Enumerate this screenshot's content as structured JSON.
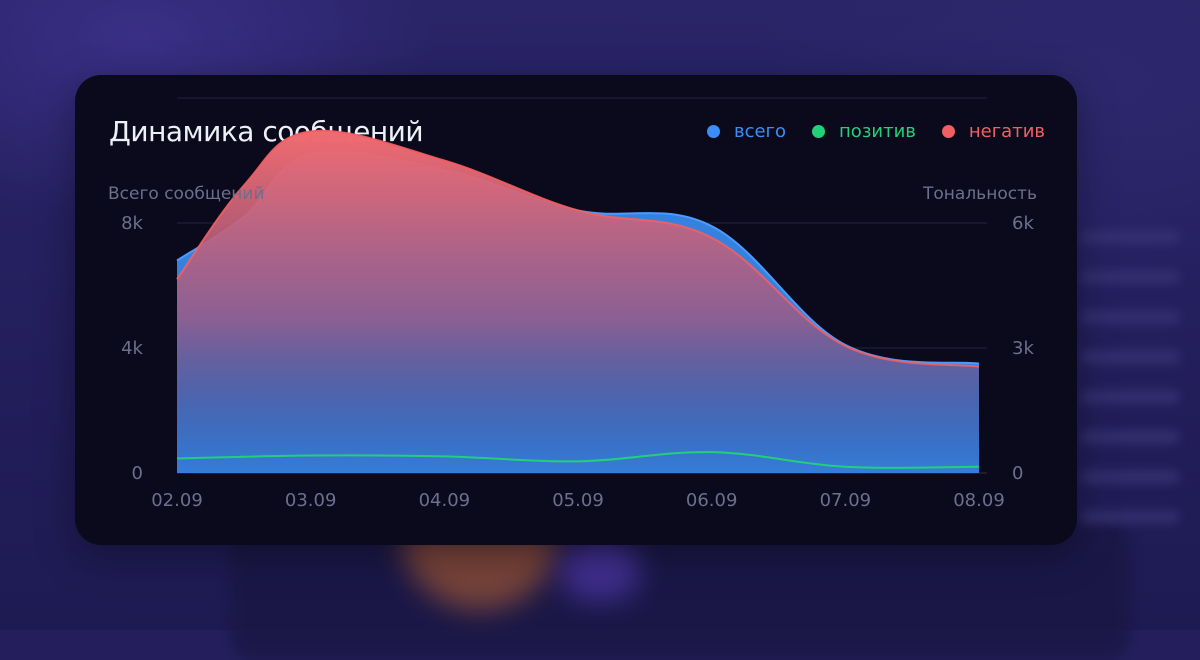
{
  "card": {
    "title": "Динамика сообщений"
  },
  "legend": [
    {
      "label": "всего",
      "color": "#3a8ef6"
    },
    {
      "label": "позитив",
      "color": "#22d07a"
    },
    {
      "label": "негатив",
      "color": "#f25f63"
    }
  ],
  "chart_data": {
    "type": "area",
    "categories": [
      "02.09",
      "03.09",
      "04.09",
      "05.09",
      "06.09",
      "07.09",
      "08.09"
    ],
    "ylabel_left": "Всего сообщений",
    "ylabel_right": "Тональность",
    "y_left": {
      "ticks": [
        0,
        4000,
        8000
      ],
      "tick_labels": [
        "0",
        "4k",
        "8k"
      ],
      "range": [
        0,
        12000
      ]
    },
    "y_right": {
      "ticks": [
        0,
        3000,
        6000
      ],
      "tick_labels": [
        "0",
        "3k",
        "6k"
      ],
      "range": [
        0,
        9000
      ]
    },
    "series": [
      {
        "name": "всего",
        "axis": "left",
        "color": "#3a8ef6",
        "x": [
          0,
          0.5,
          1,
          2,
          3,
          4,
          5,
          6
        ],
        "values": [
          6800,
          8200,
          10200,
          9700,
          8400,
          7900,
          4100,
          3500
        ]
      },
      {
        "name": "позитив",
        "axis": "right",
        "color": "#22d07a",
        "x": [
          0,
          1,
          2,
          3,
          4,
          5,
          6
        ],
        "values": [
          350,
          420,
          400,
          280,
          500,
          150,
          150
        ]
      },
      {
        "name": "негатив",
        "axis": "right",
        "color": "#f25f63",
        "x": [
          0,
          0.5,
          1,
          2,
          3,
          4,
          5,
          6
        ],
        "values": [
          4650,
          6900,
          8200,
          7500,
          6300,
          5650,
          3050,
          2550
        ]
      }
    ],
    "grid": true,
    "legend_position": "top-right"
  }
}
